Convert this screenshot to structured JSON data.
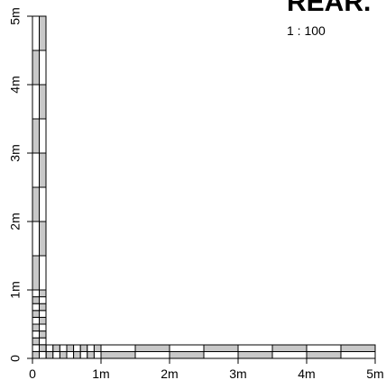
{
  "title": "REAR.",
  "scale_ratio": "1 : 100",
  "chart_data": {
    "type": "diagram",
    "description_units": "metres",
    "x_axis": {
      "range": [
        0,
        5
      ],
      "tick_labels": [
        "0",
        "1m",
        "2m",
        "3m",
        "4m",
        "5m"
      ]
    },
    "y_axis": {
      "range": [
        0,
        5
      ],
      "tick_labels": [
        "0",
        "1m",
        "2m",
        "3m",
        "4m",
        "5m"
      ]
    },
    "fine_division_m": 0.1,
    "coarse_division_m": 0.5,
    "fill_color": "#c8c8c8",
    "line_color": "#000000"
  }
}
